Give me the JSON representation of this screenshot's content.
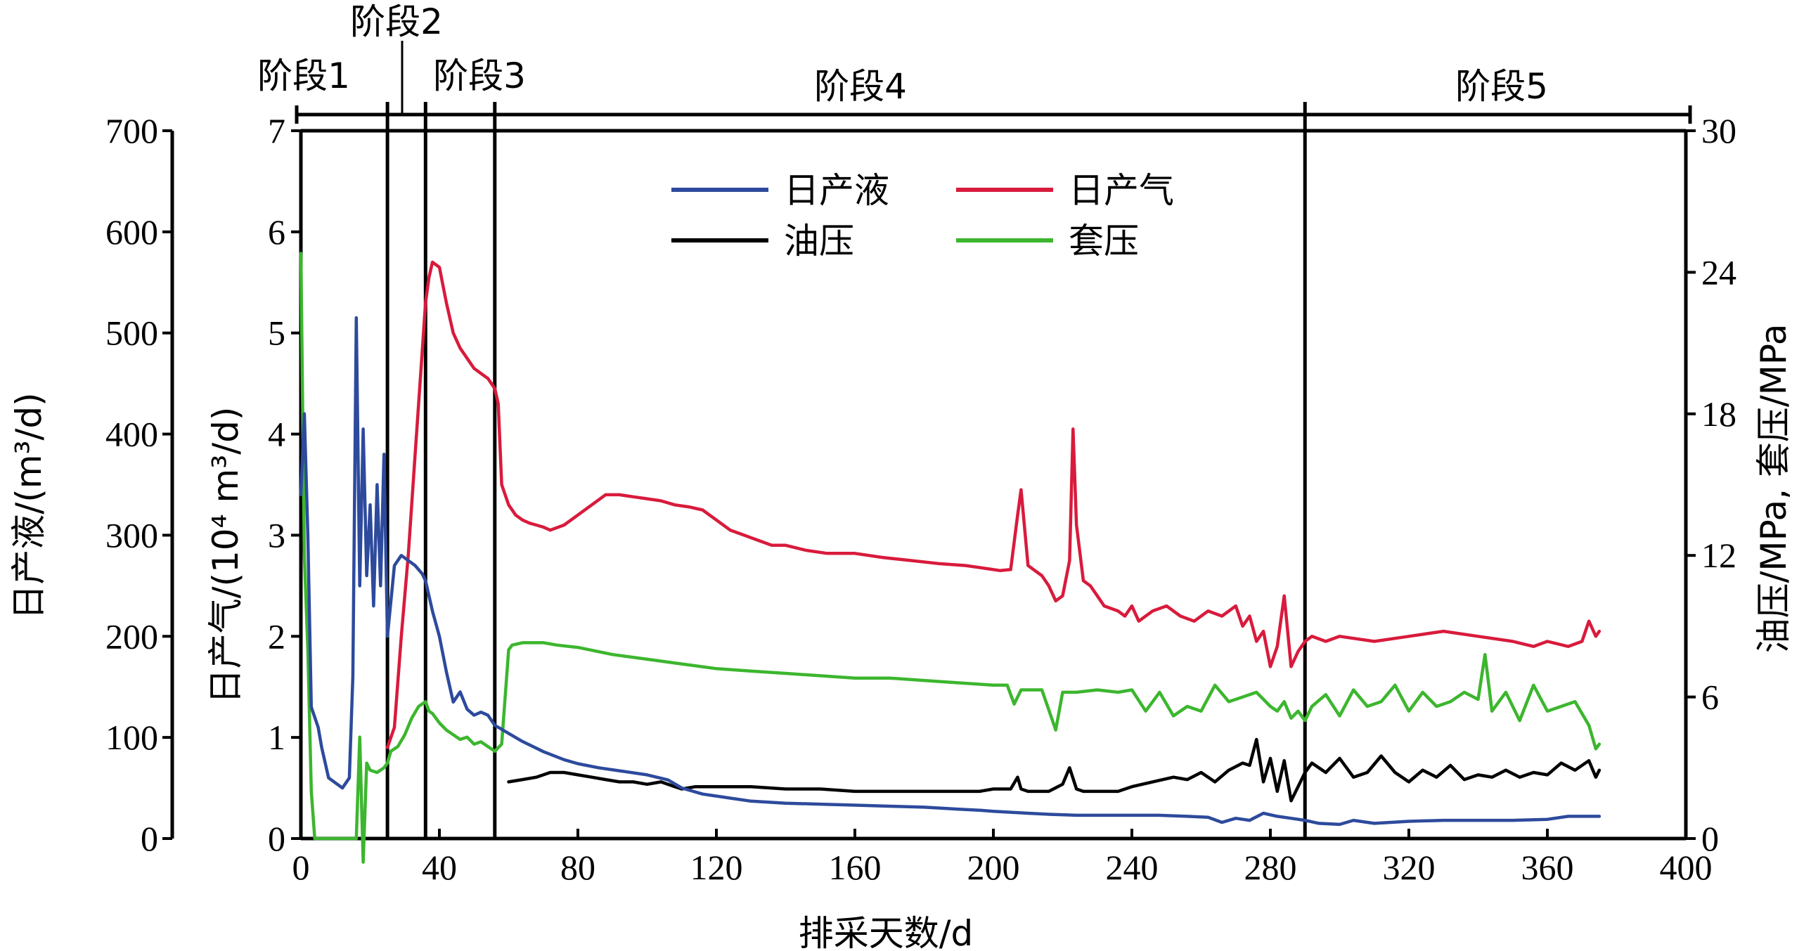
{
  "chart_data": {
    "type": "line",
    "xlabel": "排采天数/d",
    "ylabel_left_outer": "日产液/(m³/d)",
    "ylabel_left_inner": "日产气/(10⁴ m³/d)",
    "ylabel_right": "油压/MPa, 套压/MPa",
    "xlim": [
      0,
      400
    ],
    "x_ticks": [
      "0",
      "40",
      "80",
      "120",
      "160",
      "200",
      "240",
      "280",
      "320",
      "360",
      "400"
    ],
    "ylim_liquid": [
      0,
      700
    ],
    "y_ticks_liquid": [
      "0",
      "100",
      "200",
      "300",
      "400",
      "500",
      "600",
      "700"
    ],
    "ylim_gas": [
      0,
      7
    ],
    "y_ticks_gas": [
      "0",
      "1",
      "2",
      "3",
      "4",
      "5",
      "6",
      "7"
    ],
    "ylim_pressure": [
      0,
      30
    ],
    "y_ticks_pressure": [
      "0",
      "6",
      "12",
      "18",
      "24",
      "30"
    ],
    "legend_position": "top-center",
    "stage_boundaries": [
      25,
      36,
      56,
      290
    ],
    "stages": [
      {
        "label": "阶段1",
        "from": 0,
        "to": 25
      },
      {
        "label": "阶段2",
        "from": 25,
        "to": 36
      },
      {
        "label": "阶段3",
        "from": 36,
        "to": 56
      },
      {
        "label": "阶段4",
        "from": 56,
        "to": 290
      },
      {
        "label": "阶段5",
        "from": 290,
        "to": 400
      }
    ],
    "series": [
      {
        "name": "日产液",
        "axis": "liquid",
        "color": "#2d4a9c",
        "x": [
          0,
          1,
          2,
          3,
          4,
          5,
          6,
          8,
          10,
          12,
          14,
          15,
          16,
          17,
          18,
          19,
          20,
          21,
          22,
          23,
          24,
          25,
          27,
          29,
          31,
          33,
          35,
          36,
          38,
          40,
          42,
          44,
          46,
          48,
          50,
          52,
          54,
          56,
          58,
          60,
          64,
          70,
          76,
          80,
          86,
          92,
          100,
          106,
          110,
          116,
          124,
          130,
          140,
          150,
          160,
          170,
          180,
          190,
          196,
          200,
          205,
          210,
          216,
          224,
          232,
          240,
          248,
          256,
          262,
          266,
          270,
          274,
          278,
          282,
          286,
          290,
          294,
          300,
          304,
          310,
          320,
          330,
          340,
          350,
          360,
          366,
          372,
          375
        ],
        "y": [
          340,
          420,
          300,
          130,
          120,
          110,
          90,
          60,
          55,
          50,
          60,
          160,
          515,
          250,
          405,
          260,
          330,
          230,
          350,
          250,
          380,
          200,
          270,
          280,
          275,
          270,
          262,
          255,
          225,
          200,
          165,
          135,
          145,
          128,
          122,
          125,
          122,
          112,
          108,
          104,
          96,
          86,
          78,
          74,
          70,
          67,
          63,
          58,
          50,
          44,
          40,
          37,
          35,
          34,
          33,
          32,
          31,
          29,
          28,
          27,
          26,
          25,
          24,
          23,
          23,
          23,
          23,
          22,
          21,
          16,
          20,
          18,
          25,
          22,
          20,
          18,
          15,
          14,
          18,
          15,
          17,
          18,
          18,
          18,
          19,
          22,
          22,
          22
        ]
      },
      {
        "name": "日产气",
        "axis": "gas",
        "color": "#d81b3c",
        "x": [
          25,
          27,
          29,
          31,
          33,
          35,
          36,
          37,
          38,
          40,
          42,
          44,
          46,
          48,
          50,
          52,
          54,
          56,
          57,
          58,
          60,
          62,
          64,
          66,
          68,
          70,
          72,
          76,
          80,
          84,
          88,
          92,
          96,
          100,
          104,
          108,
          112,
          116,
          120,
          124,
          128,
          132,
          136,
          140,
          146,
          152,
          160,
          168,
          176,
          184,
          192,
          198,
          202,
          205,
          207,
          208,
          210,
          212,
          214,
          216,
          218,
          220,
          222,
          223,
          224,
          226,
          228,
          230,
          232,
          236,
          238,
          240,
          242,
          246,
          250,
          254,
          258,
          262,
          266,
          270,
          272,
          274,
          276,
          278,
          280,
          282,
          284,
          286,
          288,
          290,
          292,
          296,
          300,
          310,
          320,
          330,
          340,
          350,
          356,
          360,
          366,
          370,
          372,
          374,
          375
        ],
        "y": [
          0.9,
          1.1,
          2.0,
          2.8,
          3.8,
          4.8,
          5.3,
          5.55,
          5.7,
          5.65,
          5.3,
          5.0,
          4.85,
          4.75,
          4.65,
          4.6,
          4.55,
          4.45,
          4.3,
          3.5,
          3.3,
          3.2,
          3.15,
          3.12,
          3.1,
          3.08,
          3.05,
          3.1,
          3.2,
          3.3,
          3.4,
          3.4,
          3.38,
          3.36,
          3.34,
          3.3,
          3.28,
          3.25,
          3.15,
          3.05,
          3.0,
          2.95,
          2.9,
          2.9,
          2.85,
          2.82,
          2.82,
          2.78,
          2.75,
          2.72,
          2.7,
          2.67,
          2.65,
          2.66,
          3.2,
          3.45,
          2.7,
          2.65,
          2.6,
          2.5,
          2.35,
          2.4,
          2.75,
          4.05,
          3.1,
          2.55,
          2.5,
          2.4,
          2.3,
          2.25,
          2.2,
          2.3,
          2.15,
          2.25,
          2.3,
          2.2,
          2.15,
          2.25,
          2.2,
          2.3,
          2.1,
          2.2,
          1.95,
          2.05,
          1.7,
          1.9,
          2.4,
          1.7,
          1.85,
          1.95,
          2.0,
          1.95,
          2.0,
          1.95,
          2.0,
          2.05,
          2.0,
          1.95,
          1.9,
          1.95,
          1.9,
          1.95,
          2.15,
          2.0,
          2.05
        ]
      },
      {
        "name": "油压",
        "axis": "pressure",
        "color": "#000000",
        "x": [
          60,
          64,
          68,
          72,
          76,
          80,
          84,
          88,
          92,
          96,
          100,
          104,
          108,
          110,
          114,
          120,
          130,
          140,
          150,
          160,
          170,
          180,
          190,
          196,
          200,
          205,
          207,
          208,
          210,
          216,
          220,
          222,
          224,
          226,
          230,
          236,
          240,
          246,
          252,
          256,
          260,
          264,
          268,
          272,
          274,
          276,
          278,
          280,
          282,
          284,
          286,
          288,
          290,
          292,
          296,
          300,
          304,
          308,
          312,
          316,
          320,
          324,
          328,
          332,
          336,
          340,
          344,
          348,
          352,
          356,
          360,
          364,
          368,
          372,
          374,
          375
        ],
        "y": [
          2.4,
          2.5,
          2.6,
          2.8,
          2.8,
          2.7,
          2.6,
          2.5,
          2.4,
          2.4,
          2.3,
          2.4,
          2.2,
          2.1,
          2.2,
          2.2,
          2.2,
          2.1,
          2.1,
          2.0,
          2.0,
          2.0,
          2.0,
          2.0,
          2.1,
          2.1,
          2.6,
          2.1,
          2.0,
          2.0,
          2.3,
          3.0,
          2.1,
          2.0,
          2.0,
          2.0,
          2.2,
          2.4,
          2.6,
          2.5,
          2.8,
          2.4,
          2.9,
          3.2,
          3.1,
          4.2,
          2.4,
          3.4,
          2.0,
          3.3,
          1.6,
          2.2,
          2.8,
          3.2,
          2.8,
          3.4,
          2.6,
          2.8,
          3.5,
          2.8,
          2.4,
          2.9,
          2.6,
          3.1,
          2.5,
          2.7,
          2.6,
          2.9,
          2.6,
          2.8,
          2.7,
          3.2,
          2.9,
          3.3,
          2.6,
          2.9
        ]
      },
      {
        "name": "套压",
        "axis": "pressure",
        "color": "#3cb62e",
        "x": [
          0,
          1,
          2,
          3,
          4,
          5,
          6,
          16,
          17,
          18,
          19,
          20,
          22,
          24,
          25,
          26,
          28,
          30,
          32,
          34,
          36,
          37,
          38,
          40,
          42,
          44,
          46,
          48,
          50,
          52,
          54,
          56,
          58,
          60,
          61,
          64,
          70,
          74,
          80,
          90,
          100,
          110,
          120,
          130,
          140,
          150,
          160,
          170,
          180,
          190,
          200,
          204,
          206,
          208,
          214,
          218,
          220,
          222,
          224,
          230,
          236,
          240,
          244,
          248,
          252,
          256,
          260,
          264,
          268,
          272,
          276,
          280,
          282,
          284,
          286,
          288,
          290,
          292,
          296,
          300,
          304,
          308,
          312,
          316,
          320,
          324,
          328,
          332,
          336,
          340,
          342,
          344,
          348,
          352,
          356,
          360,
          364,
          368,
          372,
          374,
          375
        ],
        "y": [
          24.8,
          12.0,
          8.0,
          2.0,
          0.0,
          0.0,
          0.0,
          0.0,
          4.3,
          -1.0,
          3.2,
          2.9,
          2.8,
          3.0,
          3.2,
          3.7,
          3.9,
          4.4,
          5.1,
          5.6,
          5.8,
          5.4,
          5.3,
          4.9,
          4.6,
          4.4,
          4.2,
          4.3,
          4.0,
          4.1,
          3.9,
          3.7,
          4.0,
          8.0,
          8.2,
          8.3,
          8.3,
          8.2,
          8.1,
          7.8,
          7.6,
          7.4,
          7.2,
          7.1,
          7.0,
          6.9,
          6.8,
          6.8,
          6.7,
          6.6,
          6.5,
          6.5,
          5.7,
          6.3,
          6.3,
          4.6,
          6.2,
          6.2,
          6.2,
          6.3,
          6.2,
          6.3,
          5.4,
          6.2,
          5.2,
          5.6,
          5.4,
          6.5,
          5.8,
          6.0,
          6.2,
          5.6,
          5.4,
          5.8,
          5.1,
          5.4,
          5.0,
          5.6,
          6.1,
          5.2,
          6.3,
          5.6,
          5.8,
          6.5,
          5.4,
          6.2,
          5.6,
          5.8,
          6.2,
          5.9,
          7.8,
          5.4,
          6.2,
          5.0,
          6.5,
          5.4,
          5.6,
          5.8,
          4.8,
          3.8,
          4.0
        ]
      }
    ]
  }
}
